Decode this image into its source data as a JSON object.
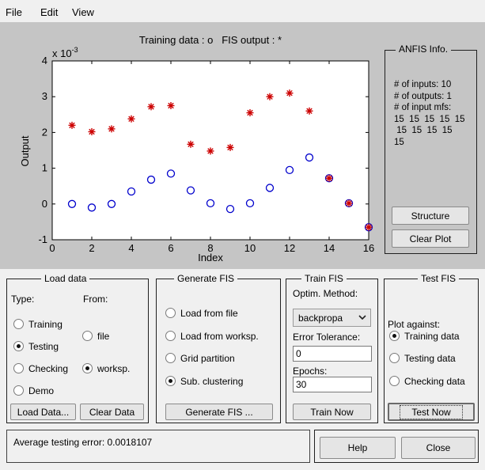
{
  "menu": {
    "file": "File",
    "edit": "Edit",
    "view": "View"
  },
  "plot": {
    "title": "Training data : o   FIS output : *",
    "ylabel": "Output",
    "xlabel": "Index",
    "exponent_label": "x 10",
    "exponent_power": "-3",
    "xticks": [
      "0",
      "2",
      "4",
      "6",
      "8",
      "10",
      "12",
      "14",
      "16"
    ],
    "yticks": [
      "4",
      "3",
      "2",
      "1",
      "0",
      "-1"
    ]
  },
  "chart_data": {
    "type": "scatter",
    "title": "Training data : o   FIS output : *",
    "xlabel": "Index",
    "ylabel": "Output",
    "y_scale_label": "x 10^-3",
    "xlim": [
      0,
      16
    ],
    "ylim": [
      -1,
      4
    ],
    "series": [
      {
        "name": "Training data",
        "marker": "circle",
        "color": "#0000cc",
        "x": [
          1,
          2,
          3,
          4,
          5,
          6,
          7,
          8,
          9,
          10,
          11,
          12,
          13,
          14,
          15,
          16
        ],
        "y": [
          0.0,
          -0.1,
          0.0,
          0.35,
          0.68,
          0.85,
          0.38,
          0.02,
          -0.14,
          0.02,
          0.45,
          0.95,
          1.3,
          0.72,
          0.02,
          -0.65
        ]
      },
      {
        "name": "FIS output",
        "marker": "star",
        "color": "#cc0000",
        "x": [
          1,
          2,
          3,
          4,
          5,
          6,
          7,
          8,
          9,
          10,
          11,
          12,
          13,
          14,
          15,
          16
        ],
        "y": [
          2.2,
          2.02,
          2.1,
          2.38,
          2.72,
          2.75,
          1.67,
          1.48,
          1.58,
          2.55,
          3.0,
          3.1,
          2.6,
          0.72,
          0.02,
          -0.65
        ]
      }
    ]
  },
  "anfis": {
    "title": "ANFIS Info.",
    "lines": [
      "# of inputs: 10",
      "# of outputs: 1",
      "# of input mfs:",
      "15  15  15  15  15",
      " 15  15  15  15",
      "15"
    ],
    "structure_btn": "Structure",
    "clear_plot_btn": "Clear Plot"
  },
  "load": {
    "title": "Load data",
    "type_label": "Type:",
    "from_label": "From:",
    "types": [
      "Training",
      "Testing",
      "Checking",
      "Demo"
    ],
    "selected_type": "Testing",
    "sources": [
      "file",
      "worksp."
    ],
    "selected_source": "worksp.",
    "load_btn": "Load Data...",
    "clear_btn": "Clear Data"
  },
  "generate": {
    "title": "Generate FIS",
    "options": [
      "Load from file",
      "Load from worksp.",
      "Grid partition",
      "Sub. clustering"
    ],
    "selected": "Sub. clustering",
    "generate_btn": "Generate FIS ..."
  },
  "train": {
    "title": "Train FIS",
    "optim_label": "Optim. Method:",
    "method": "backpropa",
    "tolerance_label": "Error Tolerance:",
    "tolerance": "0",
    "epochs_label": "Epochs:",
    "epochs": "30",
    "train_btn": "Train Now"
  },
  "test": {
    "title": "Test FIS",
    "plot_against": "Plot against:",
    "options": [
      "Training data",
      "Testing data",
      "Checking data"
    ],
    "selected": "Training data",
    "test_btn": "Test Now"
  },
  "status": {
    "message": "Average testing error: 0.0018107"
  },
  "footer": {
    "help_btn": "Help",
    "close_btn": "Close"
  }
}
